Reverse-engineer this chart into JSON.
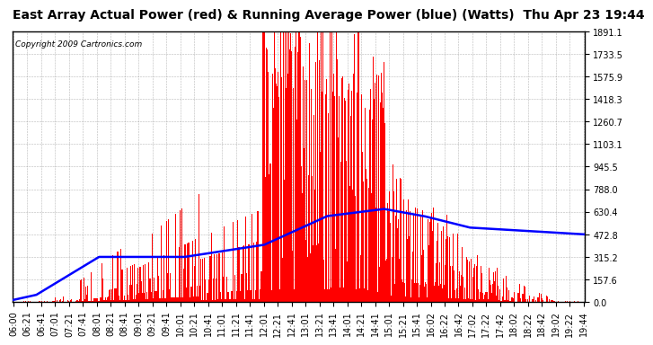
{
  "title": "East Array Actual Power (red) & Running Average Power (blue) (Watts)  Thu Apr 23 19:44",
  "copyright": "Copyright 2009 Cartronics.com",
  "yticks": [
    0.0,
    157.6,
    315.2,
    472.8,
    630.4,
    788.0,
    945.5,
    1103.1,
    1260.7,
    1418.3,
    1575.9,
    1733.5,
    1891.1
  ],
  "ytick_labels": [
    "0.0",
    "157.6",
    "315.2",
    "472.8",
    "630.4",
    "788.0",
    "945.5",
    "1103.1",
    "1260.7",
    "1418.3",
    "1575.9",
    "1733.5",
    "1891.1"
  ],
  "xtick_labels": [
    "06:00",
    "06:21",
    "06:41",
    "07:01",
    "07:21",
    "07:41",
    "08:01",
    "08:21",
    "08:41",
    "09:01",
    "09:21",
    "09:41",
    "10:01",
    "10:21",
    "10:41",
    "11:01",
    "11:21",
    "11:41",
    "12:01",
    "12:21",
    "12:41",
    "13:01",
    "13:21",
    "13:41",
    "14:01",
    "14:21",
    "14:41",
    "15:01",
    "15:21",
    "15:41",
    "16:02",
    "16:22",
    "16:42",
    "17:02",
    "17:22",
    "17:42",
    "18:02",
    "18:22",
    "18:42",
    "19:02",
    "19:22",
    "19:44"
  ],
  "ymin": 0.0,
  "ymax": 1891.1,
  "bar_color": "#FF0000",
  "line_color": "#0000FF",
  "background_color": "#FFFFFF",
  "grid_color": "#888888",
  "title_fontsize": 10,
  "tick_fontsize": 7,
  "copyright_fontsize": 6.5
}
